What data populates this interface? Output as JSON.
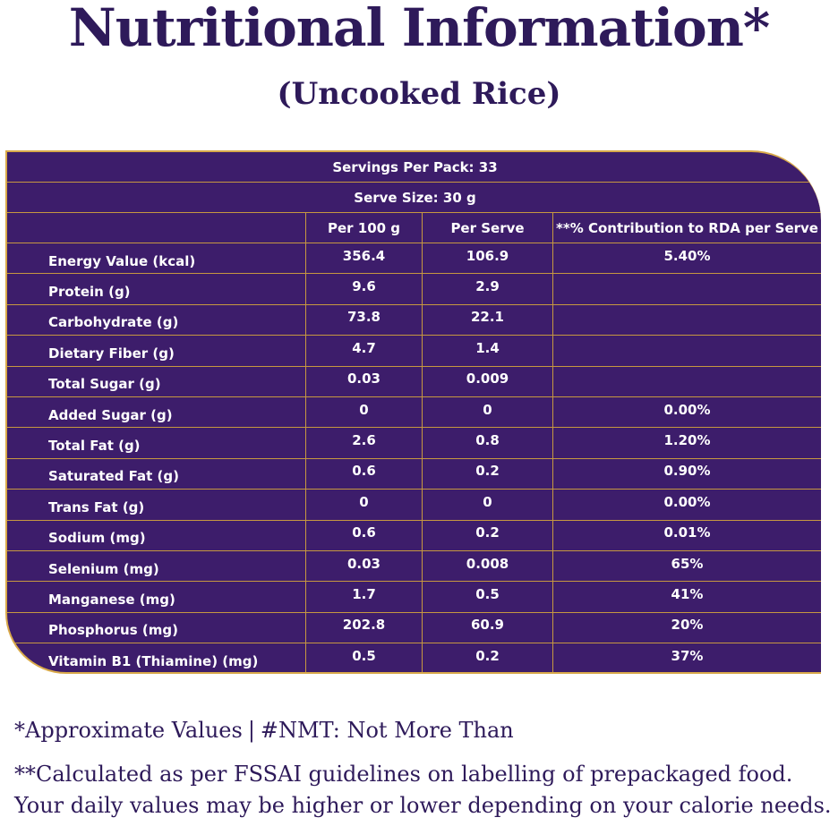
{
  "title": "Nutritional Information*",
  "subtitle": "(Uncooked Rice)",
  "table": {
    "servings_per_pack": "Servings Per Pack: 33",
    "serve_size": "Serve Size: 30 g",
    "headers": {
      "name": "",
      "per_100g": "Per 100 g",
      "per_serve": "Per Serve",
      "rda": "**% Contribution to RDA per Serve"
    },
    "rows": [
      {
        "name": "Energy Value (kcal)",
        "per_100g": "356.4",
        "per_serve": "106.9",
        "rda": "5.40%"
      },
      {
        "name": "Protein (g)",
        "per_100g": "9.6",
        "per_serve": "2.9",
        "rda": ""
      },
      {
        "name": "Carbohydrate (g)",
        "per_100g": "73.8",
        "per_serve": "22.1",
        "rda": ""
      },
      {
        "name": "Dietary Fiber (g)",
        "per_100g": "4.7",
        "per_serve": "1.4",
        "rda": ""
      },
      {
        "name": "Total Sugar (g)",
        "per_100g": "0.03",
        "per_serve": "0.009",
        "rda": ""
      },
      {
        "name": "Added Sugar (g)",
        "per_100g": "0",
        "per_serve": "0",
        "rda": "0.00%"
      },
      {
        "name": "Total Fat (g)",
        "per_100g": "2.6",
        "per_serve": "0.8",
        "rda": "1.20%"
      },
      {
        "name": "Saturated Fat (g)",
        "per_100g": "0.6",
        "per_serve": "0.2",
        "rda": "0.90%"
      },
      {
        "name": "Trans Fat (g)",
        "per_100g": "0",
        "per_serve": "0",
        "rda": "0.00%"
      },
      {
        "name": "Sodium (mg)",
        "per_100g": "0.6",
        "per_serve": "0.2",
        "rda": "0.01%"
      },
      {
        "name": "Selenium (mg)",
        "per_100g": "0.03",
        "per_serve": "0.008",
        "rda": "65%"
      },
      {
        "name": "Manganese (mg)",
        "per_100g": "1.7",
        "per_serve": "0.5",
        "rda": "41%"
      },
      {
        "name": "Phosphorus (mg)",
        "per_100g": "202.8",
        "per_serve": "60.9",
        "rda": "20%"
      },
      {
        "name": "Vitamin B1 (Thiamine) (mg)",
        "per_100g": "0.5",
        "per_serve": "0.2",
        "rda": "37%"
      }
    ]
  },
  "footnotes": {
    "approx": "*Approximate Values",
    "separator": "|",
    "nmt": "#NMT: Not More Than",
    "line2": "**Calculated as per FSSAI guidelines on labelling of prepackaged food.",
    "line3": "Your daily values may be higher or lower depending on your calorie needs."
  },
  "colors": {
    "brand_purple": "#2e1a5a",
    "table_bg": "#3d1d6b",
    "border_gold": "#d9a94a"
  }
}
